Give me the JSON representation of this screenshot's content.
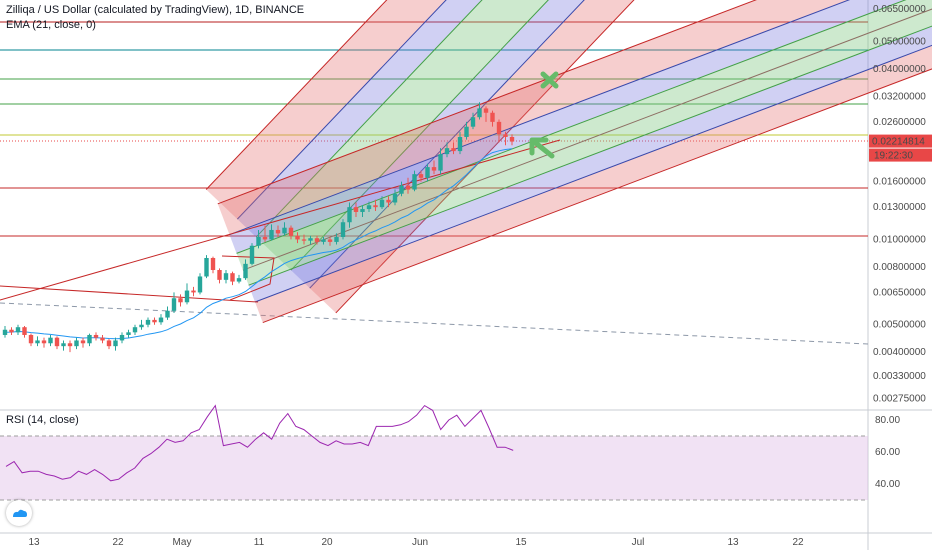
{
  "header": {
    "symbol_line": "Zilliqa / US Dollar (calculated by TradingView), 1D, BINANCE",
    "ema_line": "EMA (21, close, 0)",
    "rsi_line": "RSI (14, close)"
  },
  "price_badge": {
    "value": "0.02214814",
    "countdown": "19:22:30",
    "color": "#e84747"
  },
  "colors": {
    "up": "#26a69a",
    "down": "#ef5350",
    "ema": "#2196f3",
    "rsi": "#9c27b0",
    "rsi_band": "#e1bee7",
    "logo": "#2196f3"
  },
  "chart_data": {
    "type": "candlestick",
    "y_scale": "log",
    "price_ticks": [
      "0.06500000",
      "0.05000000",
      "0.04000000",
      "0.03200000",
      "0.02600000",
      "0.02214814",
      "0.01600000",
      "0.01300000",
      "0.01000000",
      "0.00800000",
      "0.00650000",
      "0.00500000",
      "0.00400000",
      "0.00330000",
      "0.00275000"
    ],
    "x_ticks": [
      "13",
      "22",
      "May",
      "11",
      "20",
      "Jun",
      "15",
      "Jul",
      "13",
      "22"
    ],
    "rsi_ticks": [
      "80.00",
      "60.00",
      "40.00"
    ],
    "rsi_band": [
      30,
      70
    ],
    "candles": [
      {
        "o": 0.0046,
        "c": 0.0048,
        "h": 0.00495,
        "l": 0.0045
      },
      {
        "o": 0.0048,
        "c": 0.0047,
        "h": 0.0049,
        "l": 0.0046
      },
      {
        "o": 0.0047,
        "c": 0.0049,
        "h": 0.005,
        "l": 0.0046
      },
      {
        "o": 0.0049,
        "c": 0.0046,
        "h": 0.00495,
        "l": 0.0045
      },
      {
        "o": 0.0046,
        "c": 0.0043,
        "h": 0.00465,
        "l": 0.0042
      },
      {
        "o": 0.0043,
        "c": 0.0044,
        "h": 0.00455,
        "l": 0.0042
      },
      {
        "o": 0.0044,
        "c": 0.0043,
        "h": 0.0045,
        "l": 0.00415
      },
      {
        "o": 0.0043,
        "c": 0.0045,
        "h": 0.0046,
        "l": 0.0042
      },
      {
        "o": 0.0045,
        "c": 0.0042,
        "h": 0.00455,
        "l": 0.0041
      },
      {
        "o": 0.0042,
        "c": 0.0043,
        "h": 0.0044,
        "l": 0.00405
      },
      {
        "o": 0.0043,
        "c": 0.0042,
        "h": 0.0044,
        "l": 0.004
      },
      {
        "o": 0.0042,
        "c": 0.0044,
        "h": 0.0045,
        "l": 0.0041
      },
      {
        "o": 0.0044,
        "c": 0.0043,
        "h": 0.0045,
        "l": 0.00415
      },
      {
        "o": 0.0043,
        "c": 0.0046,
        "h": 0.00465,
        "l": 0.0042
      },
      {
        "o": 0.0046,
        "c": 0.0045,
        "h": 0.0047,
        "l": 0.0044
      },
      {
        "o": 0.0045,
        "c": 0.0044,
        "h": 0.0046,
        "l": 0.0043
      },
      {
        "o": 0.0044,
        "c": 0.0042,
        "h": 0.00445,
        "l": 0.0041
      },
      {
        "o": 0.0042,
        "c": 0.0044,
        "h": 0.0045,
        "l": 0.00405
      },
      {
        "o": 0.0044,
        "c": 0.0046,
        "h": 0.0047,
        "l": 0.0043
      },
      {
        "o": 0.0046,
        "c": 0.0047,
        "h": 0.0048,
        "l": 0.0045
      },
      {
        "o": 0.0047,
        "c": 0.0049,
        "h": 0.005,
        "l": 0.0046
      },
      {
        "o": 0.0049,
        "c": 0.005,
        "h": 0.0052,
        "l": 0.0048
      },
      {
        "o": 0.005,
        "c": 0.0052,
        "h": 0.0053,
        "l": 0.0049
      },
      {
        "o": 0.0052,
        "c": 0.0051,
        "h": 0.0053,
        "l": 0.005
      },
      {
        "o": 0.0051,
        "c": 0.0053,
        "h": 0.00545,
        "l": 0.005
      },
      {
        "o": 0.0053,
        "c": 0.0056,
        "h": 0.0058,
        "l": 0.0052
      },
      {
        "o": 0.0056,
        "c": 0.0062,
        "h": 0.0065,
        "l": 0.0055
      },
      {
        "o": 0.0062,
        "c": 0.006,
        "h": 0.0064,
        "l": 0.0058
      },
      {
        "o": 0.006,
        "c": 0.0066,
        "h": 0.007,
        "l": 0.0059
      },
      {
        "o": 0.0066,
        "c": 0.0065,
        "h": 0.0068,
        "l": 0.0063
      },
      {
        "o": 0.0065,
        "c": 0.0074,
        "h": 0.0076,
        "l": 0.0064
      },
      {
        "o": 0.0074,
        "c": 0.0086,
        "h": 0.0088,
        "l": 0.0073
      },
      {
        "o": 0.0086,
        "c": 0.0078,
        "h": 0.0087,
        "l": 0.0076
      },
      {
        "o": 0.0078,
        "c": 0.0072,
        "h": 0.0079,
        "l": 0.007
      },
      {
        "o": 0.0072,
        "c": 0.0076,
        "h": 0.0078,
        "l": 0.007
      },
      {
        "o": 0.0076,
        "c": 0.0071,
        "h": 0.0077,
        "l": 0.0069
      },
      {
        "o": 0.0071,
        "c": 0.0073,
        "h": 0.0075,
        "l": 0.007
      },
      {
        "o": 0.0073,
        "c": 0.0082,
        "h": 0.0085,
        "l": 0.0072
      },
      {
        "o": 0.0082,
        "c": 0.0095,
        "h": 0.0097,
        "l": 0.0081
      },
      {
        "o": 0.0095,
        "c": 0.0102,
        "h": 0.0108,
        "l": 0.0093
      },
      {
        "o": 0.0102,
        "c": 0.01,
        "h": 0.0112,
        "l": 0.0098
      },
      {
        "o": 0.01,
        "c": 0.0108,
        "h": 0.0113,
        "l": 0.0099
      },
      {
        "o": 0.0108,
        "c": 0.0105,
        "h": 0.0112,
        "l": 0.0102
      },
      {
        "o": 0.0105,
        "c": 0.011,
        "h": 0.0115,
        "l": 0.0103
      },
      {
        "o": 0.011,
        "c": 0.0103,
        "h": 0.0112,
        "l": 0.01
      },
      {
        "o": 0.0103,
        "c": 0.01,
        "h": 0.0106,
        "l": 0.0097
      },
      {
        "o": 0.01,
        "c": 0.0099,
        "h": 0.0104,
        "l": 0.0096
      },
      {
        "o": 0.0099,
        "c": 0.0101,
        "h": 0.0103,
        "l": 0.0096
      },
      {
        "o": 0.0101,
        "c": 0.0098,
        "h": 0.0103,
        "l": 0.0096
      },
      {
        "o": 0.0098,
        "c": 0.01,
        "h": 0.0102,
        "l": 0.0096
      },
      {
        "o": 0.01,
        "c": 0.0098,
        "h": 0.0102,
        "l": 0.0095
      },
      {
        "o": 0.0098,
        "c": 0.0102,
        "h": 0.0105,
        "l": 0.0096
      },
      {
        "o": 0.0102,
        "c": 0.0115,
        "h": 0.0118,
        "l": 0.01
      },
      {
        "o": 0.0115,
        "c": 0.013,
        "h": 0.0135,
        "l": 0.011
      },
      {
        "o": 0.013,
        "c": 0.0125,
        "h": 0.0135,
        "l": 0.012
      },
      {
        "o": 0.0125,
        "c": 0.0128,
        "h": 0.0132,
        "l": 0.012
      },
      {
        "o": 0.0128,
        "c": 0.0132,
        "h": 0.0136,
        "l": 0.0125
      },
      {
        "o": 0.0132,
        "c": 0.013,
        "h": 0.0138,
        "l": 0.0126
      },
      {
        "o": 0.013,
        "c": 0.0138,
        "h": 0.0142,
        "l": 0.0128
      },
      {
        "o": 0.0138,
        "c": 0.0135,
        "h": 0.0142,
        "l": 0.013
      },
      {
        "o": 0.0135,
        "c": 0.0145,
        "h": 0.015,
        "l": 0.0132
      },
      {
        "o": 0.0145,
        "c": 0.0155,
        "h": 0.016,
        "l": 0.0142
      },
      {
        "o": 0.0155,
        "c": 0.015,
        "h": 0.0165,
        "l": 0.0145
      },
      {
        "o": 0.015,
        "c": 0.017,
        "h": 0.0175,
        "l": 0.0148
      },
      {
        "o": 0.017,
        "c": 0.0165,
        "h": 0.0175,
        "l": 0.016
      },
      {
        "o": 0.0165,
        "c": 0.018,
        "h": 0.0185,
        "l": 0.016
      },
      {
        "o": 0.018,
        "c": 0.0175,
        "h": 0.019,
        "l": 0.017
      },
      {
        "o": 0.0175,
        "c": 0.02,
        "h": 0.021,
        "l": 0.017
      },
      {
        "o": 0.02,
        "c": 0.021,
        "h": 0.022,
        "l": 0.0195
      },
      {
        "o": 0.021,
        "c": 0.0205,
        "h": 0.022,
        "l": 0.02
      },
      {
        "o": 0.0205,
        "c": 0.023,
        "h": 0.024,
        "l": 0.02
      },
      {
        "o": 0.023,
        "c": 0.025,
        "h": 0.026,
        "l": 0.0225
      },
      {
        "o": 0.025,
        "c": 0.027,
        "h": 0.028,
        "l": 0.0245
      },
      {
        "o": 0.027,
        "c": 0.029,
        "h": 0.0305,
        "l": 0.0265
      },
      {
        "o": 0.029,
        "c": 0.028,
        "h": 0.0295,
        "l": 0.026
      },
      {
        "o": 0.028,
        "c": 0.026,
        "h": 0.0285,
        "l": 0.025
      },
      {
        "o": 0.026,
        "c": 0.0235,
        "h": 0.0265,
        "l": 0.022
      },
      {
        "o": 0.0235,
        "c": 0.023,
        "h": 0.024,
        "l": 0.0215
      },
      {
        "o": 0.023,
        "c": 0.02215,
        "h": 0.0235,
        "l": 0.0215
      }
    ],
    "ema": [
      0.0047,
      0.00471,
      0.00473,
      0.00472,
      0.00469,
      0.00467,
      0.00464,
      0.00462,
      0.00459,
      0.00456,
      0.00453,
      0.00451,
      0.00449,
      0.0045,
      0.0045,
      0.00449,
      0.00447,
      0.00446,
      0.00447,
      0.00449,
      0.00453,
      0.00457,
      0.00463,
      0.00467,
      0.00472,
      0.0048,
      0.00493,
      0.00503,
      0.00517,
      0.00529,
      0.00548,
      0.00576,
      0.00594,
      0.00606,
      0.0062,
      0.00628,
      0.00638,
      0.00655,
      0.00682,
      0.00712,
      0.00738,
      0.00769,
      0.00795,
      0.00823,
      0.00842,
      0.00856,
      0.00868,
      0.0088,
      0.00889,
      0.00899,
      0.00906,
      0.00917,
      0.00938,
      0.00971,
      0.00996,
      0.01022,
      0.0105,
      0.01072,
      0.011,
      0.01123,
      0.01153,
      0.0119,
      0.01218,
      0.01262,
      0.01297,
      0.01343,
      0.0138,
      0.01436,
      0.01496,
      0.01546,
      0.01615,
      0.01694,
      0.01785,
      0.01886,
      0.01969,
      0.02026,
      0.02055,
      0.02077,
      0.0209
    ],
    "rsi": [
      51,
      54,
      47,
      48,
      48,
      46,
      45,
      43,
      44,
      48,
      46,
      49,
      46,
      42,
      43,
      47,
      50,
      56,
      59,
      63,
      68,
      66,
      67,
      72,
      74,
      82,
      89,
      64,
      65,
      66,
      63,
      68,
      72,
      68,
      78,
      84,
      76,
      74,
      70,
      66,
      64,
      67,
      65,
      65,
      66,
      64,
      76,
      76,
      76,
      77,
      79,
      83,
      89,
      86,
      74,
      80,
      83,
      76,
      81,
      86,
      75,
      63,
      63,
      61
    ]
  }
}
